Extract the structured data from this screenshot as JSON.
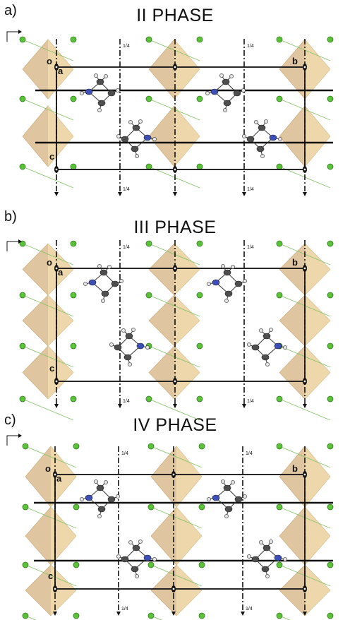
{
  "panels": [
    {
      "letter": "a)",
      "title": "II PHASE",
      "axes": {
        "origin": "o",
        "a": "a",
        "b": "b",
        "c": "c"
      },
      "quarter": "1/4"
    },
    {
      "letter": "b)",
      "title": "III PHASE",
      "axes": {
        "origin": "o",
        "a": "a",
        "b": "b",
        "c": "c"
      },
      "quarter": "1/4"
    },
    {
      "letter": "c)",
      "title": "IV PHASE",
      "axes": {
        "origin": "o",
        "a": "a",
        "b": "b",
        "c": "c"
      },
      "quarter": "1/4"
    }
  ],
  "colors": {
    "octahedron_dark": "#d9bc8f",
    "octahedron_light": "#f7e6b4",
    "chlorine": "#5cc23a",
    "nitrogen": "#3c4fb8",
    "carbon": "#4e4e4e",
    "hydrogen": "#e6e6e6",
    "bond": "#86c46a",
    "frame": "#111111"
  }
}
